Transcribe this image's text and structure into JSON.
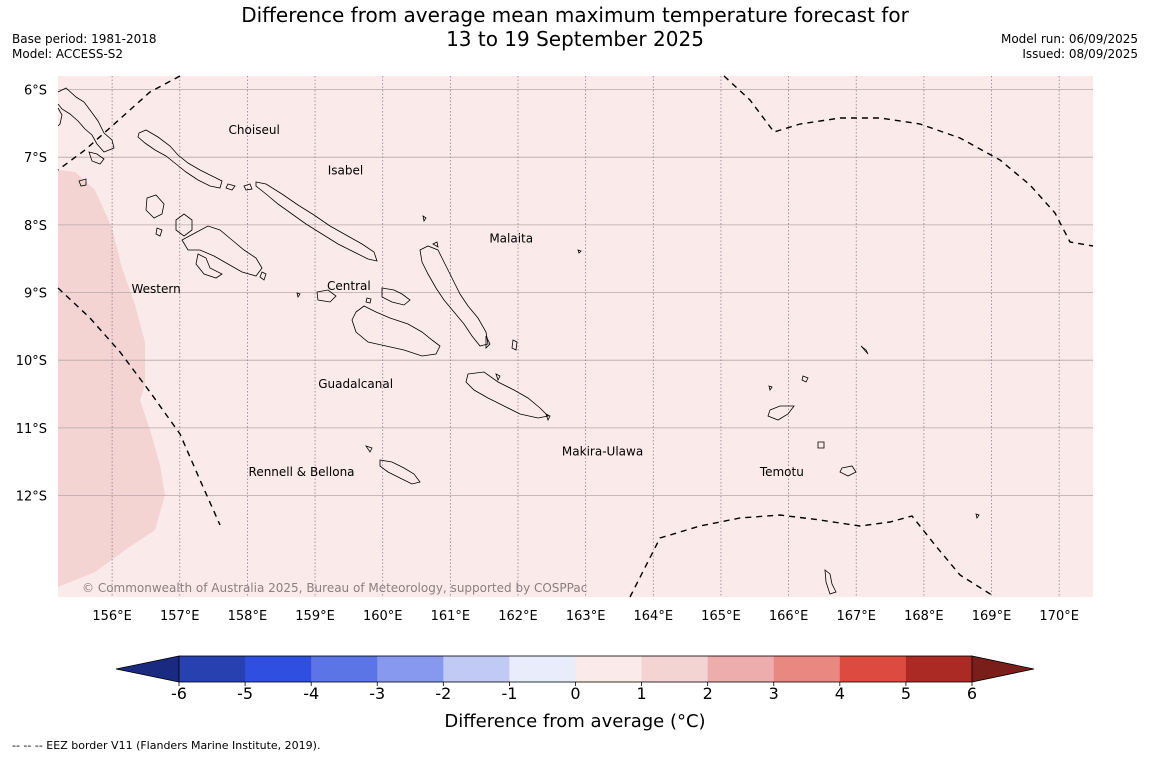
{
  "header": {
    "title_line1": "Difference from average mean maximum temperature forecast for",
    "title_line2": "13 to 19 September 2025",
    "base_period": "Base period: 1981-2018",
    "model": "Model: ACCESS-S2",
    "model_run": "Model run: 06/09/2025",
    "issued": "Issued: 08/09/2025"
  },
  "map": {
    "lon_range": [
      155.2,
      170.5
    ],
    "lat_range": [
      -13.5,
      -5.8
    ],
    "lat_ticks": [
      "6°S",
      "7°S",
      "8°S",
      "9°S",
      "10°S",
      "11°S",
      "12°S"
    ],
    "lon_ticks": [
      "156°E",
      "157°E",
      "158°E",
      "159°E",
      "160°E",
      "161°E",
      "162°E",
      "163°E",
      "164°E",
      "165°E",
      "166°E",
      "167°E",
      "168°E",
      "169°E",
      "170°E"
    ],
    "background_anomaly_color": "#fbeaea",
    "warm_zone_color": "#f4d3d3",
    "regions": [
      {
        "name": "Choiseul",
        "lon": 158.1,
        "lat": -6.6
      },
      {
        "name": "Isabel",
        "lon": 159.45,
        "lat": -7.2
      },
      {
        "name": "Malaita",
        "lon": 161.9,
        "lat": -8.2
      },
      {
        "name": "Central",
        "lon": 159.5,
        "lat": -8.9
      },
      {
        "name": "Western",
        "lon": 156.65,
        "lat": -8.95
      },
      {
        "name": "Guadalcanal",
        "lon": 159.6,
        "lat": -10.35
      },
      {
        "name": "Makira-Ulawa",
        "lon": 163.25,
        "lat": -11.35
      },
      {
        "name": "Rennell & Bellona",
        "lon": 158.8,
        "lat": -11.65
      },
      {
        "name": "Temotu",
        "lon": 165.9,
        "lat": -11.65
      }
    ],
    "copyright": "© Commonwealth of Australia 2025, Bureau of Meteorology, supported by COSPPac"
  },
  "colorbar": {
    "ticks": [
      "-6",
      "-5",
      "-4",
      "-3",
      "-2",
      "-1",
      "0",
      "1",
      "2",
      "3",
      "4",
      "5",
      "6"
    ],
    "colors": [
      "#2741b0",
      "#2f4fe0",
      "#5b74e6",
      "#8799ee",
      "#c1c9f5",
      "#e9ecfb",
      "#fbeaea",
      "#f4d3d3",
      "#eeadad",
      "#e88880",
      "#dd4a40",
      "#ab2a24"
    ],
    "under_color": "#1a2a80",
    "over_color": "#7a1e1a",
    "label": "Difference from average (°C)"
  },
  "footnote": "--  --  -- EEZ border V11 (Flanders Marine Institute, 2019)."
}
